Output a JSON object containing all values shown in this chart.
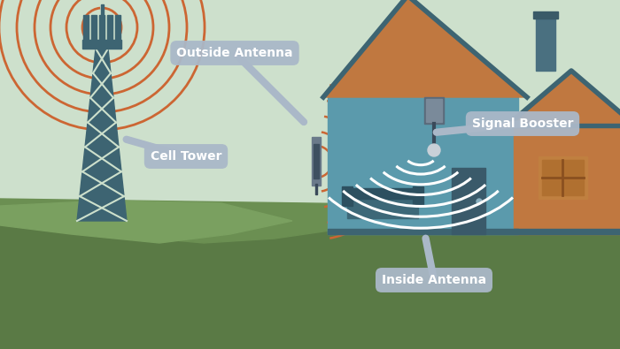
{
  "bg_color": "#cde0cc",
  "ground_dark": "#5a7a45",
  "ground_mid": "#6b8f52",
  "ground_light": "#7aa060",
  "tower_color": "#3d6472",
  "house_front_color": "#5b9aac",
  "house_roof_color": "#c07840",
  "house_side_wall_color": "#c07840",
  "house_side_roof_color": "#a06030",
  "roof_trim_color": "#3d6472",
  "chimney_color": "#4a7080",
  "chimney_cap": "#3a5a68",
  "window_outer": "#c08040",
  "window_inner": "#b07030",
  "door_color": "#3a5a6a",
  "couch_color": "#3d6878",
  "couch_dark": "#2d5060",
  "booster_body": "#5a6a7a",
  "booster_face": "#7a8a9a",
  "antenna_outer": "#6a7a8a",
  "antenna_mid": "#3d5060",
  "cable_color": "#3a4a5a",
  "connector_color": "#c8d0d8",
  "wave_outside": "#cc6633",
  "wave_inside": "#ffffff",
  "label_bg": "#aab8c8",
  "label_text": "#ffffff",
  "labels": {
    "outside_antenna": "Outside Antenna",
    "cell_tower": "Cell Tower",
    "signal_booster": "Signal Booster",
    "inside_antenna": "Inside Antenna"
  }
}
